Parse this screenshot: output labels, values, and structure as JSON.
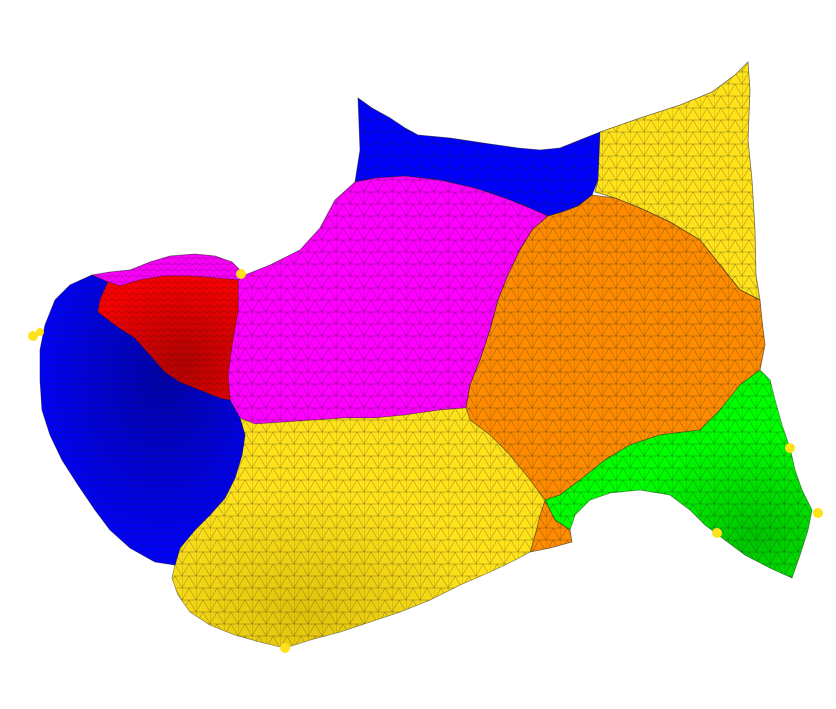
{
  "colors": {
    "background": "#ffffff",
    "mesh_edge": "#1a1a1a",
    "marker": "#ffe21a"
  },
  "regions": [
    {
      "id": "blue-top",
      "color": "#0000ff",
      "shade": "#0000ff"
    },
    {
      "id": "magenta-top",
      "color": "#ff00ff",
      "shade": "#e800e8"
    },
    {
      "id": "magenta-left",
      "color": "#ff00ff",
      "shade": "#ee00ee"
    },
    {
      "id": "red-left",
      "color": "#ff0000",
      "shade": "#b00000"
    },
    {
      "id": "blue-left",
      "color": "#0000ff",
      "shade": "#000090"
    },
    {
      "id": "yellow-top",
      "color": "#ffe21a",
      "shade": "#f0d010"
    },
    {
      "id": "orange-center",
      "color": "#ff8c00",
      "shade": "#f08000"
    },
    {
      "id": "green-right",
      "color": "#00ff00",
      "shade": "#00a800"
    },
    {
      "id": "yellow-bottom",
      "color": "#ffe21a",
      "shade": "#d8c000"
    },
    {
      "id": "orange-notch",
      "color": "#ff8c00",
      "shade": "#ff8c00"
    }
  ],
  "markers": [
    {
      "id": "marker-left-1"
    },
    {
      "id": "marker-left-2"
    },
    {
      "id": "marker-top"
    },
    {
      "id": "marker-right-upper"
    },
    {
      "id": "marker-right-edge"
    },
    {
      "id": "marker-right-lower"
    },
    {
      "id": "marker-bottom"
    }
  ]
}
